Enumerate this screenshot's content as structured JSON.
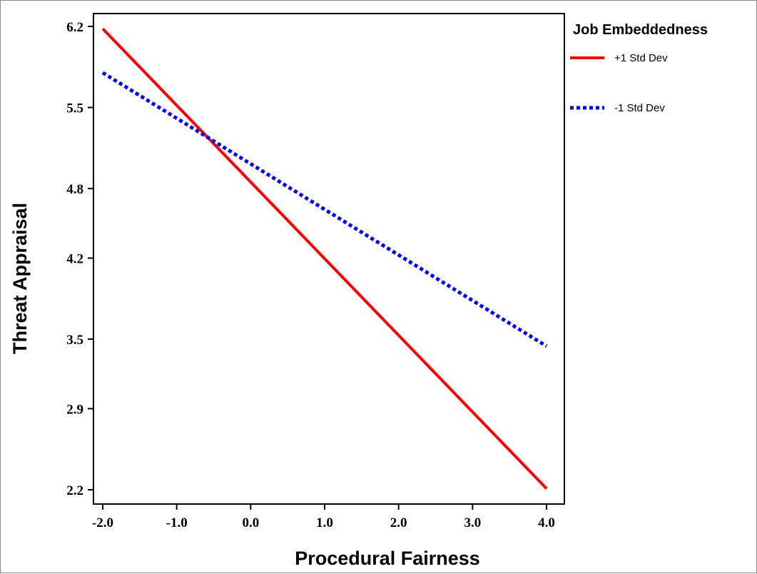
{
  "chart_data": {
    "type": "line",
    "title": "",
    "xlabel": "Procedural Fairness",
    "ylabel": "Threat Appraisal",
    "x_ticks": [
      "-2.0",
      "-1.0",
      "0.0",
      "1.0",
      "2.0",
      "3.0",
      "4.0"
    ],
    "y_ticks": [
      "2.2",
      "2.9",
      "3.5",
      "4.2",
      "4.8",
      "5.5",
      "6.2"
    ],
    "xlim": [
      -2.0,
      4.0
    ],
    "ylim": [
      2.2,
      6.2
    ],
    "grid": false,
    "legend": {
      "title": "Job Embeddedness",
      "placement": "outside-right-top"
    },
    "series": [
      {
        "name": "+1 Std Dev",
        "x": [
          -2.0,
          4.0
        ],
        "y": [
          6.18,
          2.21
        ],
        "color": "#ff0000",
        "style": "solid"
      },
      {
        "name": "-1 Std Dev",
        "x": [
          -2.0,
          4.0
        ],
        "y": [
          5.8,
          3.44
        ],
        "color": "#0000ff",
        "style": "dotted"
      }
    ]
  }
}
